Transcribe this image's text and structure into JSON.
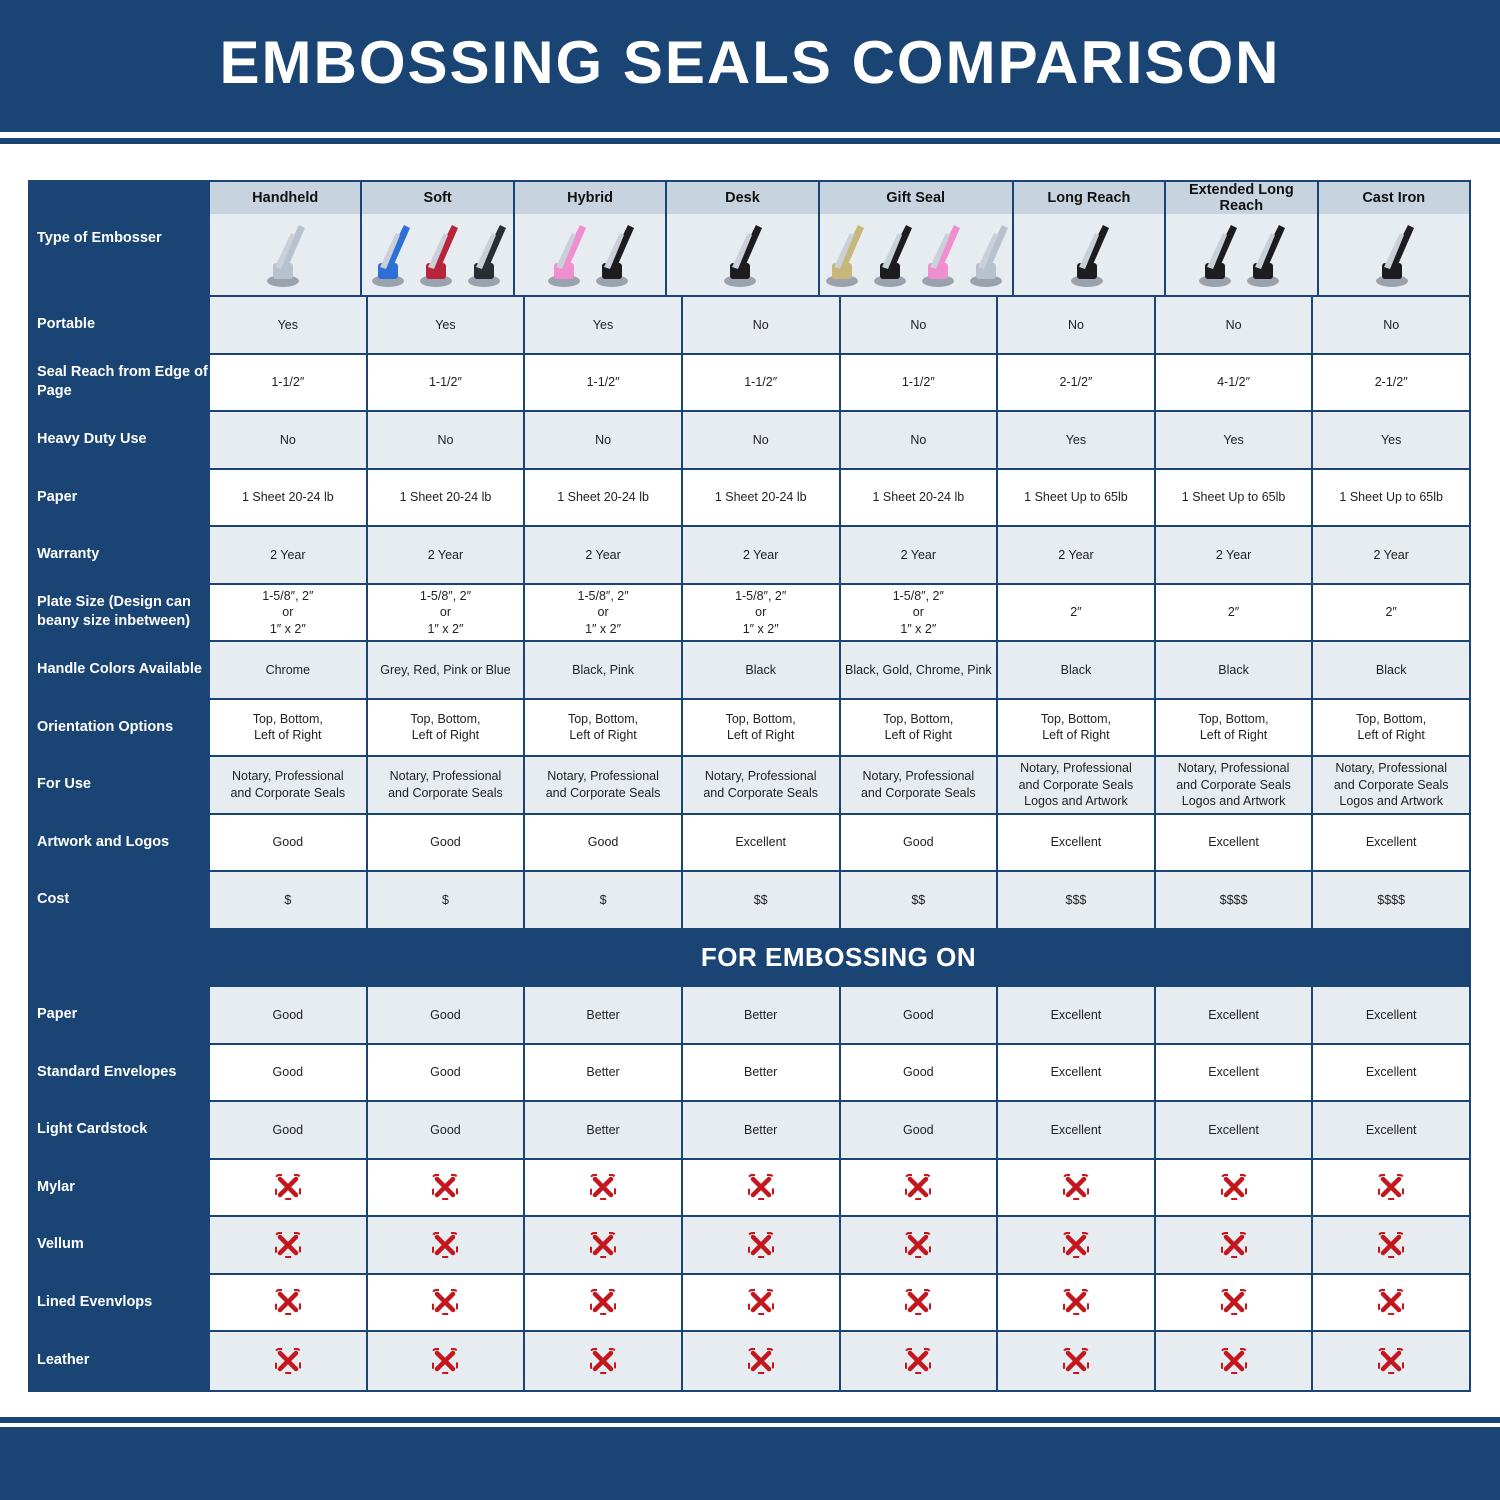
{
  "title": "EMBOSSING SEALS COMPARISON",
  "header_label": "Type of Embosser",
  "columns": [
    {
      "name": "Handheld",
      "image_colors": [
        "#b8c2cf"
      ]
    },
    {
      "name": "Soft",
      "image_colors": [
        "#2f6fd6",
        "#b8253a",
        "#2a2d33"
      ]
    },
    {
      "name": "Hybrid",
      "image_colors": [
        "#f08fcf",
        "#1d1d20"
      ]
    },
    {
      "name": "Desk",
      "image_colors": [
        "#1d1d20"
      ]
    },
    {
      "name": "Gift Seal",
      "image_colors": [
        "#c8b77a",
        "#1d1d20",
        "#f08fcf",
        "#b8c2cf"
      ]
    },
    {
      "name": "Long Reach",
      "image_colors": [
        "#1d1d20"
      ]
    },
    {
      "name": "Extended Long Reach",
      "image_colors": [
        "#1d1d20",
        "#1d1d20"
      ]
    },
    {
      "name": "Cast Iron",
      "image_colors": [
        "#1d1d20"
      ]
    }
  ],
  "rows": [
    {
      "label": "Portable",
      "values": [
        "Yes",
        "Yes",
        "Yes",
        "No",
        "No",
        "No",
        "No",
        "No"
      ]
    },
    {
      "label": "Seal Reach from Edge of Page",
      "values": [
        "1-1/2″",
        "1-1/2″",
        "1-1/2″",
        "1-1/2″",
        "1-1/2″",
        "2-1/2″",
        "4-1/2″",
        "2-1/2″"
      ]
    },
    {
      "label": "Heavy Duty Use",
      "values": [
        "No",
        "No",
        "No",
        "No",
        "No",
        "Yes",
        "Yes",
        "Yes"
      ]
    },
    {
      "label": "Paper",
      "values": [
        "1 Sheet 20-24 lb",
        "1 Sheet 20-24 lb",
        "1 Sheet 20-24 lb",
        "1 Sheet 20-24 lb",
        "1 Sheet 20-24 lb",
        "1 Sheet Up to 65lb",
        "1 Sheet Up to 65lb",
        "1 Sheet Up to 65lb"
      ]
    },
    {
      "label": "Warranty",
      "values": [
        "2 Year",
        "2 Year",
        "2 Year",
        "2 Year",
        "2 Year",
        "2 Year",
        "2 Year",
        "2 Year"
      ]
    },
    {
      "label": "Plate Size (Design can beany size inbetween)",
      "values": [
        "1-5/8″, 2″\nor\n1″ x 2″",
        "1-5/8″, 2″\nor\n1″ x 2″",
        "1-5/8″, 2″\nor\n1″ x 2″",
        "1-5/8″, 2″\nor\n1″ x 2″",
        "1-5/8″, 2″\nor\n1″ x 2″",
        "2″",
        "2″",
        "2″"
      ]
    },
    {
      "label": "Handle Colors Available",
      "values": [
        "Chrome",
        "Grey, Red, Pink or Blue",
        "Black, Pink",
        "Black",
        "Black, Gold, Chrome, Pink",
        "Black",
        "Black",
        "Black"
      ]
    },
    {
      "label": "Orientation Options",
      "values": [
        "Top, Bottom,\nLeft of Right",
        "Top, Bottom,\nLeft of Right",
        "Top, Bottom,\nLeft of Right",
        "Top, Bottom,\nLeft of Right",
        "Top, Bottom,\nLeft of Right",
        "Top, Bottom,\nLeft of Right",
        "Top, Bottom,\nLeft of Right",
        "Top, Bottom,\nLeft of Right"
      ]
    },
    {
      "label": "For Use",
      "values": [
        "Notary, Professional\nand Corporate Seals",
        "Notary, Professional\nand Corporate Seals",
        "Notary, Professional\nand Corporate Seals",
        "Notary, Professional\nand Corporate Seals",
        "Notary, Professional\nand Corporate Seals",
        "Notary, Professional\nand Corporate Seals\nLogos and Artwork",
        "Notary, Professional\nand Corporate Seals\nLogos and Artwork",
        "Notary, Professional\nand Corporate Seals\nLogos and Artwork"
      ]
    },
    {
      "label": "Artwork and Logos",
      "values": [
        "Good",
        "Good",
        "Good",
        "Excellent",
        "Good",
        "Excellent",
        "Excellent",
        "Excellent"
      ]
    },
    {
      "label": "Cost",
      "values": [
        "$",
        "$",
        "$",
        "$$",
        "$$",
        "$$$",
        "$$$$",
        "$$$$"
      ]
    }
  ],
  "section_title": "FOR EMBOSSING ON",
  "embossing_rows": [
    {
      "label": "Paper",
      "values": [
        "Good",
        "Good",
        "Better",
        "Better",
        "Good",
        "Excellent",
        "Excellent",
        "Excellent"
      ]
    },
    {
      "label": "Standard Envelopes",
      "values": [
        "Good",
        "Good",
        "Better",
        "Better",
        "Good",
        "Excellent",
        "Excellent",
        "Excellent"
      ]
    },
    {
      "label": "Light Cardstock",
      "values": [
        "Good",
        "Good",
        "Better",
        "Better",
        "Good",
        "Excellent",
        "Excellent",
        "Excellent"
      ]
    },
    {
      "label": "Mylar",
      "values": [
        "x-icon",
        "x-icon",
        "x-icon",
        "x-icon",
        "x-icon",
        "x-icon",
        "x-icon",
        "x-icon"
      ]
    },
    {
      "label": "Vellum",
      "values": [
        "x-icon",
        "x-icon",
        "x-icon",
        "x-icon",
        "x-icon",
        "x-icon",
        "x-icon",
        "x-icon"
      ]
    },
    {
      "label": "Lined Evenvlops",
      "values": [
        "x-icon",
        "x-icon",
        "x-icon",
        "x-icon",
        "x-icon",
        "x-icon",
        "x-icon",
        "x-icon"
      ]
    },
    {
      "label": "Leather",
      "values": [
        "x-icon",
        "x-icon",
        "x-icon",
        "x-icon",
        "x-icon",
        "x-icon",
        "x-icon",
        "x-icon"
      ]
    }
  ],
  "colors": {
    "brand_blue": "#1a4474",
    "header_gray": "#c7d4e0",
    "row_gray": "#e7ecf1",
    "x_red": "#c4161c"
  }
}
